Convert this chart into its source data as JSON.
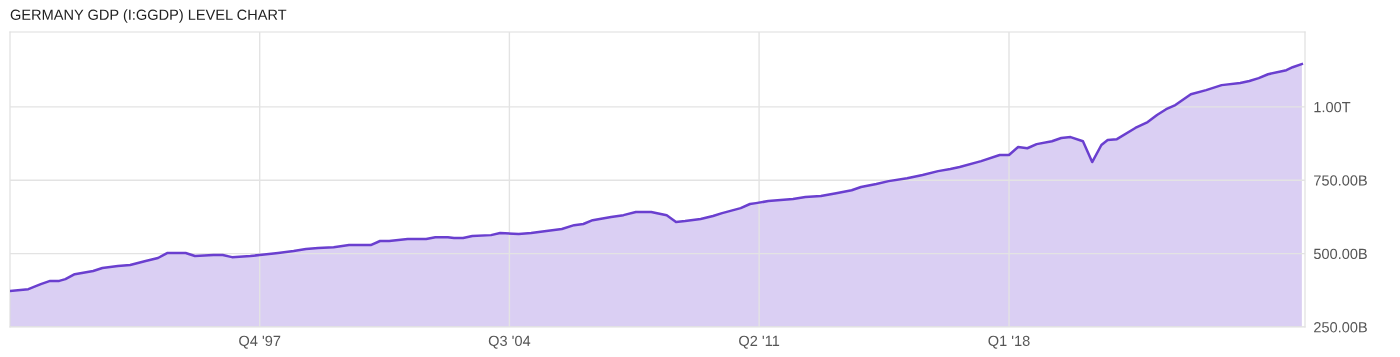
{
  "chart_data": {
    "type": "area",
    "title": "GERMANY GDP (I:GGDP) LEVEL CHART",
    "x": [
      "1991-01",
      "1991-07",
      "1991-11",
      "1992-02",
      "1992-05",
      "1992-07",
      "1992-10",
      "1993-04",
      "1993-07",
      "1993-12",
      "1994-04",
      "1994-09",
      "1995-01",
      "1995-04",
      "1995-10",
      "1996-01",
      "1996-07",
      "1996-10",
      "1997-01",
      "1997-07",
      "1997-10",
      "1998-04",
      "1998-09",
      "1999-01",
      "1999-05",
      "1999-10",
      "2000-03",
      "2000-10",
      "2001-01",
      "2001-04",
      "2001-10",
      "2002-04",
      "2002-07",
      "2002-11",
      "2003-01",
      "2003-04",
      "2003-07",
      "2004-01",
      "2004-04",
      "2004-10",
      "2005-02",
      "2005-07",
      "2005-12",
      "2006-04",
      "2006-07",
      "2006-10",
      "2007-04",
      "2007-08",
      "2007-12",
      "2008-05",
      "2008-10",
      "2009-01",
      "2009-04",
      "2009-09",
      "2010-01",
      "2010-04",
      "2010-10",
      "2011-01",
      "2011-03",
      "2011-07",
      "2012-03",
      "2012-07",
      "2012-12",
      "2013-05",
      "2013-10",
      "2014-01",
      "2014-06",
      "2014-10",
      "2015-04",
      "2015-09",
      "2016-02",
      "2016-06",
      "2016-09",
      "2017-04",
      "2017-10",
      "2018-01",
      "2018-04",
      "2018-07",
      "2018-10",
      "2019-03",
      "2019-06",
      "2019-09",
      "2020-01",
      "2020-04",
      "2020-07",
      "2020-09",
      "2020-12",
      "2021-06",
      "2021-10",
      "2022-01",
      "2022-04",
      "2022-07",
      "2022-12",
      "2023-05",
      "2023-10",
      "2024-04",
      "2024-07",
      "2024-10",
      "2025-01",
      "2025-07",
      "2025-09",
      "2025-12"
    ],
    "series": [
      {
        "color": "#6a3fcf",
        "values": [
          373000000000.0,
          379000000000.0,
          396000000000.0,
          407000000000.0,
          407000000000.0,
          413000000000.0,
          430000000000.0,
          441000000000.0,
          451000000000.0,
          458000000000.0,
          461000000000.0,
          475000000000.0,
          485000000000.0,
          502000000000.0,
          502000000000.0,
          492000000000.0,
          495000000000.0,
          495000000000.0,
          488000000000.0,
          492000000000.0,
          495000000000.0,
          502000000000.0,
          509000000000.0,
          516000000000.0,
          519000000000.0,
          522000000000.0,
          529000000000.0,
          529000000000.0,
          543000000000.0,
          543000000000.0,
          550000000000.0,
          550000000000.0,
          556000000000.0,
          556000000000.0,
          553000000000.0,
          553000000000.0,
          560000000000.0,
          563000000000.0,
          570000000000.0,
          567000000000.0,
          570000000000.0,
          577000000000.0,
          584000000000.0,
          597000000000.0,
          601000000000.0,
          614000000000.0,
          625000000000.0,
          631000000000.0,
          642000000000.0,
          642000000000.0,
          631000000000.0,
          608000000000.0,
          611000000000.0,
          618000000000.0,
          628000000000.0,
          638000000000.0,
          655000000000.0,
          669000000000.0,
          672000000000.0,
          679000000000.0,
          686000000000.0,
          693000000000.0,
          696000000000.0,
          706000000000.0,
          716000000000.0,
          727000000000.0,
          737000000000.0,
          747000000000.0,
          757000000000.0,
          768000000000.0,
          781000000000.0,
          788000000000.0,
          795000000000.0,
          815000000000.0,
          836000000000.0,
          836000000000.0,
          863000000000.0,
          859000000000.0,
          873000000000.0,
          883000000000.0,
          894000000000.0,
          897000000000.0,
          883000000000.0,
          812000000000.0,
          870000000000.0,
          887000000000.0,
          890000000000.0,
          928000000000.0,
          948000000000.0,
          972000000000.0,
          992000000000.0,
          1006000000000.0,
          1043000000000.0,
          1057000000000.0,
          1074000000000.0,
          1081000000000.0,
          1088000000000.0,
          1098000000000.0,
          1111000000000.0,
          1125000000000.0,
          1135000000000.0,
          1146000000000.0
        ]
      }
    ],
    "xlim": [
      "1991-01",
      "2026-01"
    ],
    "xticks": [
      {
        "value": "1997-10",
        "label": "Q4 '97"
      },
      {
        "value": "2004-07",
        "label": "Q3 '04"
      },
      {
        "value": "2011-04",
        "label": "Q2 '11"
      },
      {
        "value": "2018-01",
        "label": "Q1 '18"
      }
    ],
    "ylim": [
      250000000000.0,
      1255000000000.0
    ],
    "yticks": [
      {
        "value": 250000000000.0,
        "label": "250.00B"
      },
      {
        "value": 500000000000.0,
        "label": "500.00B"
      },
      {
        "value": 750000000000.0,
        "label": "750.00B"
      },
      {
        "value": 1000000000000.0,
        "label": "1.00T"
      }
    ],
    "grid": true
  }
}
